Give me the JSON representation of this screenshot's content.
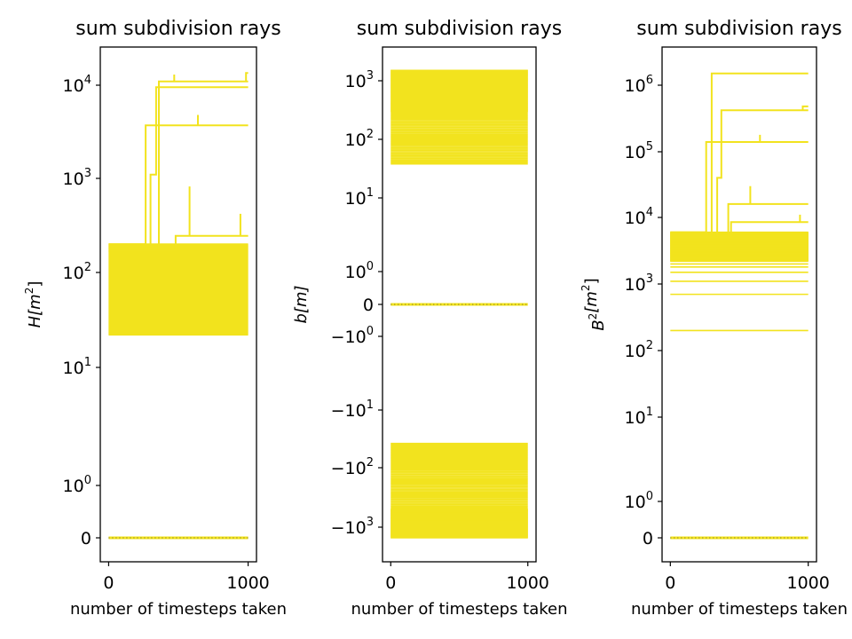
{
  "chart_data": [
    {
      "type": "line",
      "title": "sum subdivision rays",
      "xlabel": "number of timesteps taken",
      "ylabel": "H[m²]",
      "ylabel_main": "H",
      "ylabel_unit": "[m",
      "ylabel_sup": "2",
      "ylabel_end": "]",
      "yscale": "symlog",
      "xlim": [
        -60,
        1060
      ],
      "xticks": [
        {
          "v": 0,
          "label": "0"
        },
        {
          "v": 1000,
          "label": "1000"
        }
      ],
      "yticks": [
        {
          "v": 0,
          "base": "0",
          "exp": ""
        },
        {
          "v": 1,
          "base": "10",
          "exp": "0"
        },
        {
          "v": 10,
          "base": "10",
          "exp": "1"
        },
        {
          "v": 100,
          "base": "10",
          "exp": "2"
        },
        {
          "v": 1000,
          "base": "10",
          "exp": "3"
        },
        {
          "v": 10000,
          "base": "10",
          "exp": "4"
        }
      ],
      "color": "#f2e31e",
      "band": {
        "low": 22,
        "high": 200
      },
      "zero_line": true,
      "series": [
        {
          "x": [
            0,
            265,
            265,
            1000
          ],
          "y": [
            200,
            200,
            3700,
            3700
          ]
        },
        {
          "x": [
            0,
            300,
            300,
            340,
            340,
            1000
          ],
          "y": [
            190,
            190,
            1100,
            1100,
            9500,
            9500
          ]
        },
        {
          "x": [
            0,
            360,
            360,
            1000
          ],
          "y": [
            180,
            180,
            11000,
            11000
          ]
        },
        {
          "x": [
            0,
            480,
            480,
            1000
          ],
          "y": [
            170,
            170,
            245,
            245
          ]
        },
        {
          "x": [
            640,
            640
          ],
          "y": [
            3700,
            4800
          ]
        },
        {
          "x": [
            580,
            580
          ],
          "y": [
            245,
            820
          ]
        },
        {
          "x": [
            470,
            470
          ],
          "y": [
            11000,
            13000
          ]
        },
        {
          "x": [
            985,
            985,
            1000
          ],
          "y": [
            11000,
            13500,
            13500
          ]
        },
        {
          "x": [
            945,
            945
          ],
          "y": [
            245,
            420
          ]
        }
      ]
    },
    {
      "type": "line",
      "title": "sum subdivision rays",
      "xlabel": "number of timesteps taken",
      "ylabel": "b[m]",
      "ylabel_main": "b",
      "ylabel_unit": "[m]",
      "ylabel_sup": "",
      "ylabel_end": "",
      "yscale": "symlog",
      "xlim": [
        -60,
        1060
      ],
      "xticks": [
        {
          "v": 0,
          "label": "0"
        },
        {
          "v": 1000,
          "label": "1000"
        }
      ],
      "yticks": [
        {
          "v": -1000,
          "base": "−10",
          "exp": "3"
        },
        {
          "v": -100,
          "base": "−10",
          "exp": "2"
        },
        {
          "v": -10,
          "base": "−10",
          "exp": "1"
        },
        {
          "v": -1,
          "base": "−10",
          "exp": "0"
        },
        {
          "v": 0,
          "base": "0",
          "exp": ""
        },
        {
          "v": 1,
          "base": "10",
          "exp": "0"
        },
        {
          "v": 10,
          "base": "10",
          "exp": "1"
        },
        {
          "v": 100,
          "base": "10",
          "exp": "2"
        },
        {
          "v": 1000,
          "base": "10",
          "exp": "3"
        }
      ],
      "color": "#f2e31e",
      "band": {
        "low": 38,
        "high": 1500
      },
      "band_neg": {
        "low": -1500,
        "high": -38
      },
      "zero_line": true,
      "series": []
    },
    {
      "type": "line",
      "title": "sum subdivision rays",
      "xlabel": "number of timesteps taken",
      "ylabel": "B²[m²]",
      "ylabel_main": "B",
      "ylabel_sup_pre": "2",
      "ylabel_unit": "[m",
      "ylabel_sup": "2",
      "ylabel_end": "]",
      "yscale": "symlog",
      "xlim": [
        -60,
        1060
      ],
      "xticks": [
        {
          "v": 0,
          "label": "0"
        },
        {
          "v": 1000,
          "label": "1000"
        }
      ],
      "yticks": [
        {
          "v": 0,
          "base": "0",
          "exp": ""
        },
        {
          "v": 1,
          "base": "10",
          "exp": "0"
        },
        {
          "v": 10,
          "base": "10",
          "exp": "1"
        },
        {
          "v": 100,
          "base": "10",
          "exp": "2"
        },
        {
          "v": 1000,
          "base": "10",
          "exp": "3"
        },
        {
          "v": 10000,
          "base": "10",
          "exp": "4"
        },
        {
          "v": 100000,
          "base": "10",
          "exp": "5"
        },
        {
          "v": 1000000,
          "base": "10",
          "exp": "6"
        }
      ],
      "color": "#f2e31e",
      "band": {
        "low": 2200,
        "high": 6000
      },
      "extra_levels": [
        200,
        700,
        1100,
        1500,
        1800,
        2000
      ],
      "zero_line": true,
      "series": [
        {
          "x": [
            0,
            260,
            260,
            1000
          ],
          "y": [
            6000,
            6000,
            140000,
            140000
          ]
        },
        {
          "x": [
            0,
            300,
            300,
            1000
          ],
          "y": [
            5800,
            5800,
            1500000,
            1500000
          ]
        },
        {
          "x": [
            0,
            340,
            340,
            370,
            370,
            1000
          ],
          "y": [
            5500,
            5500,
            40000,
            40000,
            420000,
            420000
          ]
        },
        {
          "x": [
            0,
            420,
            420,
            1000
          ],
          "y": [
            5200,
            5200,
            16000,
            16000
          ]
        },
        {
          "x": [
            0,
            440,
            440,
            1000
          ],
          "y": [
            5000,
            5000,
            8500,
            8500
          ]
        },
        {
          "x": [
            960,
            960,
            1000
          ],
          "y": [
            420000,
            480000,
            480000
          ]
        },
        {
          "x": [
            580,
            580
          ],
          "y": [
            16000,
            30000
          ]
        },
        {
          "x": [
            650,
            650
          ],
          "y": [
            140000,
            180000
          ]
        },
        {
          "x": [
            940,
            940
          ],
          "y": [
            8500,
            11000
          ]
        }
      ]
    }
  ]
}
